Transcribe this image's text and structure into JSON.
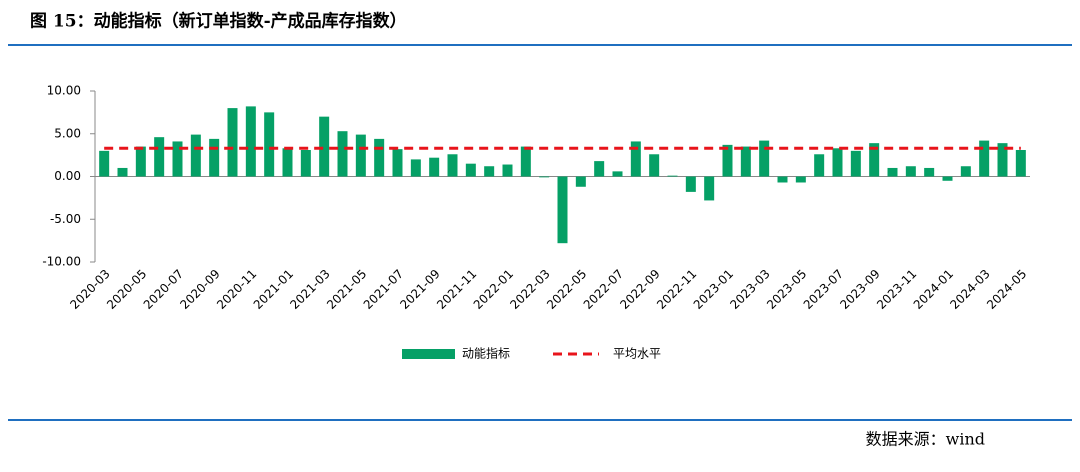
{
  "chart_data": {
    "type": "bar",
    "title": "图 15：动能指标（新订单指数-产成品库存指数）",
    "source": "数据来源：wind",
    "categories": [
      "2020-03",
      null,
      "2020-05",
      null,
      "2020-07",
      null,
      "2020-09",
      null,
      "2020-11",
      null,
      "2021-01",
      null,
      "2021-03",
      null,
      "2021-05",
      null,
      "2021-07",
      null,
      "2021-09",
      null,
      "2021-11",
      null,
      "2022-01",
      null,
      "2022-03",
      null,
      "2022-05",
      null,
      "2022-07",
      null,
      "2022-09",
      null,
      "2022-11",
      null,
      "2023-01",
      null,
      "2023-03",
      null,
      "2023-05",
      null,
      "2023-07",
      null,
      "2023-09",
      null,
      "2023-11",
      null,
      "2024-01",
      null,
      "2024-03",
      null,
      "2024-05"
    ],
    "series": [
      {
        "name": "动能指标",
        "color": "#05a066",
        "type": "bar",
        "values": [
          3.0,
          1.0,
          3.5,
          4.6,
          4.1,
          4.9,
          4.4,
          8.0,
          8.2,
          7.5,
          3.3,
          3.1,
          7.0,
          5.3,
          4.9,
          4.4,
          3.2,
          2.0,
          2.2,
          2.6,
          1.5,
          1.2,
          1.4,
          3.5,
          -0.1,
          -7.8,
          -1.2,
          1.8,
          0.6,
          4.1,
          2.6,
          0.1,
          -1.8,
          -2.8,
          3.7,
          3.5,
          4.2,
          -0.7,
          -0.7,
          2.6,
          3.3,
          3.0,
          3.9,
          1.0,
          1.2,
          1.0,
          -0.5,
          1.2,
          4.2,
          3.9,
          3.1
        ]
      },
      {
        "name": "平均水平",
        "color": "#e8141b",
        "type": "line",
        "dashed": true,
        "values": [
          3.3,
          3.3,
          3.3,
          3.3,
          3.3,
          3.3,
          3.3,
          3.3,
          3.3,
          3.3,
          3.3,
          3.3,
          3.3,
          3.3,
          3.3,
          3.3,
          3.3,
          3.3,
          3.3,
          3.3,
          3.3,
          3.3,
          3.3,
          3.3,
          3.3,
          3.3,
          3.3,
          3.3,
          3.3,
          3.3,
          3.3,
          3.3,
          3.3,
          3.3,
          3.3,
          3.3,
          3.3,
          3.3,
          3.3,
          3.3,
          3.3,
          3.3,
          3.3,
          3.3,
          3.3,
          3.3,
          3.3,
          3.3,
          3.3,
          3.3,
          3.3
        ]
      }
    ],
    "ylim": [
      -10,
      10
    ],
    "yticks": [
      {
        "value": 10,
        "label": "10.00"
      },
      {
        "value": 5,
        "label": "5.00"
      },
      {
        "value": 0,
        "label": "0.00"
      },
      {
        "value": -5,
        "label": "-5.00"
      },
      {
        "value": -10,
        "label": "-10.00"
      }
    ],
    "grid": false,
    "legend": "bottom"
  }
}
